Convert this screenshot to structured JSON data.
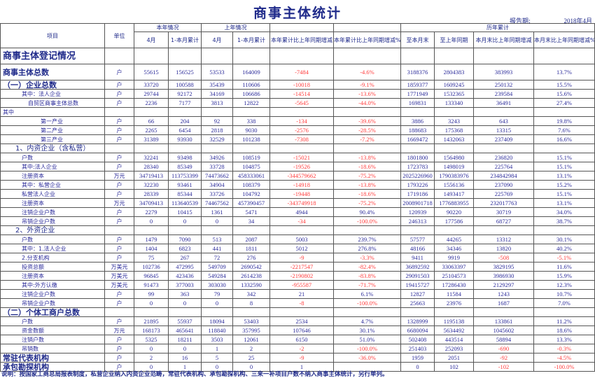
{
  "title": "商事主体统计",
  "report_period_label": "报告期:",
  "report_period": "2018年4月",
  "colors": {
    "title": "#1f2a8a",
    "number": "#2b2b9a",
    "negative": "#ff3b3b"
  },
  "headers": {
    "item": "项目",
    "unit": "单位",
    "this_year": "本年情况",
    "last_year": "上年情况",
    "history": "历年累计",
    "sub": [
      "4月",
      "1-本月累计",
      "4月",
      "1-本月累计",
      "本年累计比上年同期增减",
      "本年累计比上年同期增减%",
      "至本月末",
      "至上年同期",
      "本月末比上年同期增减",
      "本月末比上年同期增减%"
    ]
  },
  "rows": [
    {
      "type": "section",
      "indent": 0,
      "label": "商事主体登记情况",
      "unit": "",
      "v": [
        "",
        "",
        "",
        "",
        "",
        "",
        "",
        "",
        "",
        ""
      ]
    },
    {
      "type": "total",
      "indent": 0,
      "label": "商事主体总数",
      "unit": "户",
      "v": [
        "55615",
        "156525",
        "53533",
        "164009",
        "-7484",
        "-4.6%",
        "3188376",
        "2804383",
        "383993",
        "13.7%"
      ]
    },
    {
      "type": "group",
      "indent": 0,
      "label": "（一）企业总数",
      "unit": "户",
      "v": [
        "33720",
        "100588",
        "35439",
        "110606",
        "-10018",
        "-9.1%",
        "1859377",
        "1609245",
        "250132",
        "15.5%"
      ]
    },
    {
      "type": "item",
      "indent": 3,
      "label": "其中：法人企业",
      "unit": "户",
      "v": [
        "29744",
        "92172",
        "34169",
        "106686",
        "-14514",
        "-13.6%",
        "1771949",
        "1532365",
        "239584",
        "15.6%"
      ]
    },
    {
      "type": "item",
      "indent": 4,
      "label": "自贸区商事主体总数",
      "unit": "户",
      "v": [
        "2236",
        "7177",
        "3813",
        "12822",
        "-5645",
        "-44.0%",
        "169831",
        "133340",
        "36491",
        "27.4%"
      ]
    },
    {
      "type": "item",
      "indent": 0,
      "label": "其中",
      "unit": "",
      "v": [
        "",
        "",
        "",
        "",
        "",
        "",
        "",
        "",
        "",
        ""
      ]
    },
    {
      "type": "item",
      "indent": 6,
      "label": "第一产业",
      "unit": "户",
      "v": [
        "66",
        "204",
        "92",
        "338",
        "-134",
        "-39.6%",
        "3886",
        "3243",
        "643",
        "19.8%"
      ]
    },
    {
      "type": "item",
      "indent": 6,
      "label": "第二产业",
      "unit": "户",
      "v": [
        "2265",
        "6454",
        "2818",
        "9030",
        "-2576",
        "-28.5%",
        "188683",
        "175368",
        "13315",
        "7.6%"
      ]
    },
    {
      "type": "item",
      "indent": 6,
      "label": "第三产业",
      "unit": "户",
      "v": [
        "31389",
        "93930",
        "32529",
        "101238",
        "-7308",
        "-7.2%",
        "1669472",
        "1432063",
        "237409",
        "16.6%"
      ]
    },
    {
      "type": "sub",
      "indent": 2,
      "label": "1、内资企业（含私营）",
      "unit": "",
      "v": [
        "",
        "",
        "",
        "",
        "",
        "",
        "",
        "",
        "",
        ""
      ]
    },
    {
      "type": "item",
      "indent": 3,
      "label": "户数",
      "unit": "户",
      "v": [
        "32241",
        "93498",
        "34926",
        "108519",
        "-15021",
        "-13.8%",
        "1801800",
        "1564980",
        "236820",
        "15.1%"
      ]
    },
    {
      "type": "item",
      "indent": 3,
      "label": "其中:法人企业",
      "unit": "户",
      "v": [
        "28340",
        "85349",
        "33728",
        "104875",
        "-19526",
        "-18.6%",
        "1723783",
        "1498019",
        "225764",
        "15.1%"
      ]
    },
    {
      "type": "item",
      "indent": 3,
      "label": "注册资本",
      "unit": "万元",
      "v": [
        "34719413",
        "113753399",
        "74473662",
        "458333061",
        "-344579662",
        "-75.2%",
        "2025226960",
        "1790383976",
        "234842984",
        "13.1%"
      ]
    },
    {
      "type": "item",
      "indent": 3,
      "label": "其中：私营企业",
      "unit": "户",
      "v": [
        "32230",
        "93461",
        "34904",
        "108379",
        "-14918",
        "-13.8%",
        "1793226",
        "1556136",
        "237090",
        "15.2%"
      ]
    },
    {
      "type": "item",
      "indent": 3,
      "label": "私营法人企业",
      "unit": "户",
      "v": [
        "28339",
        "85344",
        "33726",
        "104792",
        "-19448",
        "-18.6%",
        "1719186",
        "1493417",
        "225769",
        "15.1%"
      ]
    },
    {
      "type": "item",
      "indent": 3,
      "label": "注册资本",
      "unit": "万元",
      "v": [
        "34709413",
        "113640539",
        "74467562",
        "457390457",
        "-343749918",
        "-75.2%",
        "2008901718",
        "1776883955",
        "232017763",
        "13.1%"
      ]
    },
    {
      "type": "item",
      "indent": 3,
      "label": "注销企业户数",
      "unit": "户",
      "v": [
        "2279",
        "10415",
        "1361",
        "5471",
        "4944",
        "90.4%",
        "120939",
        "90220",
        "30719",
        "34.0%"
      ]
    },
    {
      "type": "item",
      "indent": 3,
      "label": "吊销企业户数",
      "unit": "户",
      "v": [
        "0",
        "0",
        "0",
        "34",
        "-34",
        "-100.0%",
        "246313",
        "177586",
        "68727",
        "38.7%"
      ]
    },
    {
      "type": "sub",
      "indent": 2,
      "label": "2、外资企业",
      "unit": "",
      "v": [
        "",
        "",
        "",
        "",
        "",
        "",
        "",
        "",
        "",
        ""
      ]
    },
    {
      "type": "item",
      "indent": 3,
      "label": "户数",
      "unit": "户",
      "v": [
        "1479",
        "7090",
        "513",
        "2087",
        "5003",
        "239.7%",
        "57577",
        "44265",
        "13312",
        "30.1%"
      ]
    },
    {
      "type": "item",
      "indent": 3,
      "label": "其中：1.法人企业",
      "unit": "户",
      "v": [
        "1404",
        "6823",
        "441",
        "1811",
        "5012",
        "276.8%",
        "48166",
        "34346",
        "13820",
        "40.2%"
      ]
    },
    {
      "type": "item",
      "indent": 3,
      "label": "2.分支机构",
      "unit": "户",
      "v": [
        "75",
        "267",
        "72",
        "276",
        "-9",
        "-3.3%",
        "9411",
        "9919",
        "-508",
        "-5.1%"
      ]
    },
    {
      "type": "item",
      "indent": 3,
      "label": "投资总额",
      "unit": "万美元",
      "v": [
        "102736",
        "472995",
        "549709",
        "2690542",
        "-2217547",
        "-82.4%",
        "36892592",
        "33063397",
        "3829195",
        "11.6%"
      ]
    },
    {
      "type": "item",
      "indent": 3,
      "label": "注册资本",
      "unit": "万美元",
      "v": [
        "96845",
        "423436",
        "549284",
        "2614238",
        "-2190802",
        "-83.8%",
        "29091503",
        "25104573",
        "3986930",
        "15.9%"
      ]
    },
    {
      "type": "item",
      "indent": 3,
      "label": "其中:外方认缴",
      "unit": "万美元",
      "v": [
        "91473",
        "377003",
        "303030",
        "1332590",
        "-955587",
        "-71.7%",
        "19415727",
        "17286430",
        "2129297",
        "12.3%"
      ]
    },
    {
      "type": "item",
      "indent": 3,
      "label": "注销企业户数",
      "unit": "户",
      "v": [
        "99",
        "363",
        "79",
        "342",
        "21",
        "6.1%",
        "12827",
        "11584",
        "1243",
        "10.7%"
      ]
    },
    {
      "type": "item",
      "indent": 3,
      "label": "吊销企业户数",
      "unit": "户",
      "v": [
        "0",
        "0",
        "0",
        "8",
        "-8",
        "-100.0%",
        "25663",
        "23976",
        "1687",
        "7.0%"
      ]
    },
    {
      "type": "group",
      "indent": 0,
      "label": "（二）个体工商户总数",
      "unit": "",
      "v": [
        "",
        "",
        "",
        "",
        "",
        "",
        "",
        "",
        "",
        ""
      ]
    },
    {
      "type": "item",
      "indent": 3,
      "label": "户数",
      "unit": "户",
      "v": [
        "21895",
        "55937",
        "18094",
        "53403",
        "2534",
        "4.7%",
        "1328999",
        "1195138",
        "133861",
        "11.2%"
      ]
    },
    {
      "type": "item",
      "indent": 3,
      "label": "资金数额",
      "unit": "万元",
      "v": [
        "168173",
        "465641",
        "118840",
        "357995",
        "107646",
        "30.1%",
        "6680094",
        "5634492",
        "1045602",
        "18.6%"
      ]
    },
    {
      "type": "item",
      "indent": 3,
      "label": "注销户数",
      "unit": "户",
      "v": [
        "5325",
        "18211",
        "3503",
        "12061",
        "6150",
        "51.0%",
        "502408",
        "443514",
        "58894",
        "13.3%"
      ]
    },
    {
      "type": "item",
      "indent": 3,
      "label": "吊销数",
      "unit": "户",
      "v": [
        "0",
        "0",
        "1",
        "2",
        "-2",
        "-100.0%",
        "251403",
        "252093",
        "-690",
        "-0.3%"
      ]
    },
    {
      "type": "group",
      "indent": 0,
      "label": "常驻代表机构",
      "unit": "户",
      "v": [
        "2",
        "16",
        "5",
        "25",
        "-9",
        "-36.0%",
        "1959",
        "2051",
        "-92",
        "-4.5%"
      ]
    },
    {
      "type": "group",
      "indent": 0,
      "label": "承包勘探机构",
      "unit": "户",
      "v": [
        "0",
        "1",
        "0",
        "0",
        "1",
        "",
        "0",
        "102",
        "-102",
        "-100.0%"
      ]
    }
  ],
  "note": "说明：按国家工商总局报表制度，私营企业纳入内资企业范畴，常驻代表机构、承包勘探机构、三来一补项目户数不纳入商事主体统计，另行单列。"
}
